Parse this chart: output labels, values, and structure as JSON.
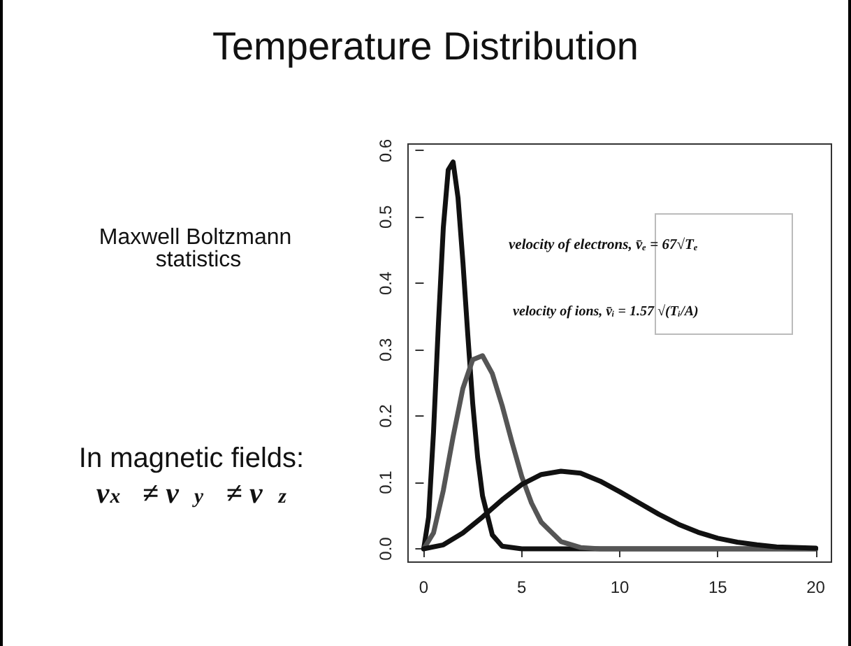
{
  "chart_data": {
    "type": "line",
    "title": "Temperature Distribution",
    "annotations": [
      "Maxwell Boltzmann statistics",
      "In magnetic fields:",
      "v$_{x}$ ≠ v$_{y}$ ≠ v$_{z}$",
      "velocity of electrons, v̄ₑ = 67√Tₑ",
      "velocity of ions, v̄ᵢ = 1.57 √(Tᵢ/A)"
    ],
    "xlim": [
      -0.8,
      20.8
    ],
    "xticks": [
      0,
      5,
      10,
      15,
      20
    ],
    "ylim": [
      -0.02,
      0.61
    ],
    "yticks": [
      {
        "value": 0,
        "label": "0.0"
      },
      0.1,
      0.2,
      0.3,
      0.4,
      0.5,
      0.6
    ],
    "marker": "none",
    "line_style": "solid",
    "series": [
      {
        "color": "#111111",
        "x": [
          0,
          0.25,
          0.5,
          0.75,
          1,
          1.25,
          1.5,
          1.75,
          2,
          2.25,
          2.5,
          2.75,
          3,
          3.5,
          4,
          5,
          20
        ],
        "values": [
          0,
          0.048,
          0.176,
          0.339,
          0.484,
          0.571,
          0.583,
          0.529,
          0.432,
          0.322,
          0.219,
          0.138,
          0.08,
          0.021,
          0.004,
          0,
          0
        ]
      },
      {
        "color": "#555555",
        "x": [
          0,
          0.5,
          1,
          1.5,
          2,
          2.5,
          3,
          3.5,
          4,
          4.5,
          5,
          5.5,
          6,
          7,
          8,
          9,
          20
        ],
        "values": [
          0,
          0.024,
          0.088,
          0.169,
          0.242,
          0.285,
          0.291,
          0.264,
          0.216,
          0.161,
          0.109,
          0.069,
          0.04,
          0.011,
          0.002,
          0,
          0
        ]
      },
      {
        "color": "#111111",
        "x": [
          0,
          1,
          2,
          3,
          4,
          5,
          6,
          7,
          8,
          9,
          10,
          11,
          12,
          13,
          14,
          15,
          16,
          17,
          18,
          20
        ],
        "values": [
          0,
          0.006,
          0.024,
          0.048,
          0.074,
          0.097,
          0.112,
          0.117,
          0.114,
          0.102,
          0.086,
          0.069,
          0.052,
          0.037,
          0.025,
          0.016,
          0.01,
          0.006,
          0.003,
          0.001
        ]
      }
    ]
  }
}
